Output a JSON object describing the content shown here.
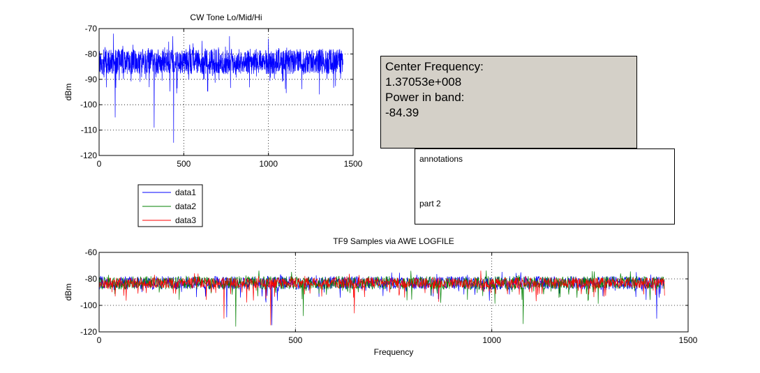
{
  "chart_data": [
    {
      "type": "line",
      "title": "CW Tone Lo/Mid/Hi",
      "xlabel": "",
      "ylabel": "dBm",
      "xlim": [
        0,
        1500
      ],
      "ylim": [
        -120,
        -70
      ],
      "x_ticks": [
        "0",
        "500",
        "1000",
        "1500"
      ],
      "y_ticks": [
        "-70",
        "-80",
        "-90",
        "-100",
        "-110",
        "-120"
      ],
      "x_tick_values": [
        0,
        500,
        1000,
        1500
      ],
      "y_tick_values": [
        -70,
        -80,
        -90,
        -100,
        -110,
        -120
      ],
      "grid": "dotted",
      "x_range": [
        0,
        1440
      ],
      "series": [
        {
          "name": "data1",
          "color": "#0000ff",
          "typical_level": -83,
          "spread": 5,
          "min_dips": [
            [
              325,
              -109
            ],
            [
              440,
              -115
            ],
            [
              95,
              -105
            ]
          ],
          "max_peaks": [
            [
              85,
              -72
            ],
            [
              435,
              -73
            ],
            [
              770,
              -73
            ],
            [
              1000,
              -74
            ]
          ]
        }
      ],
      "legend": {
        "placement": "below-left",
        "entries": [
          {
            "name": "data1",
            "color": "#0000ff"
          },
          {
            "name": "data2",
            "color": "#008000"
          },
          {
            "name": "data3",
            "color": "#ff0000"
          }
        ]
      }
    },
    {
      "type": "line",
      "title": "TF9 Samples via AWE LOGFILE",
      "xlabel": "Frequency",
      "ylabel": "dBm",
      "xlim": [
        0,
        1500
      ],
      "ylim": [
        -120,
        -60
      ],
      "x_ticks": [
        "0",
        "500",
        "1000",
        "1500"
      ],
      "y_ticks": [
        "-60",
        "-80",
        "-100",
        "-120"
      ],
      "x_tick_values": [
        0,
        500,
        1000,
        1500
      ],
      "y_tick_values": [
        -60,
        -80,
        -100,
        -120
      ],
      "grid": "dotted",
      "x_range": [
        0,
        1440
      ],
      "series": [
        {
          "name": "data1",
          "color": "#0000ff",
          "typical_level": -83,
          "spread": 5,
          "min_dips": [
            [
              440,
              -115
            ],
            [
              325,
              -109
            ],
            [
              1420,
              -110
            ]
          ]
        },
        {
          "name": "data2",
          "color": "#008000",
          "typical_level": -83,
          "spread": 5,
          "min_dips": [
            [
              348,
              -116
            ],
            [
              1080,
              -114
            ],
            [
              520,
              -108
            ]
          ]
        },
        {
          "name": "data3",
          "color": "#ff0000",
          "typical_level": -83,
          "spread": 4,
          "min_dips": [
            [
              437,
              -115
            ],
            [
              318,
              -110
            ],
            [
              650,
              -106
            ]
          ]
        }
      ]
    }
  ],
  "info": {
    "line1": "Center Frequency:",
    "line2": "1.37053e+008",
    "line3": "Power in band:",
    "line4": "-84.39"
  },
  "notes": {
    "line1": "annotations",
    "line2": "part 2"
  }
}
